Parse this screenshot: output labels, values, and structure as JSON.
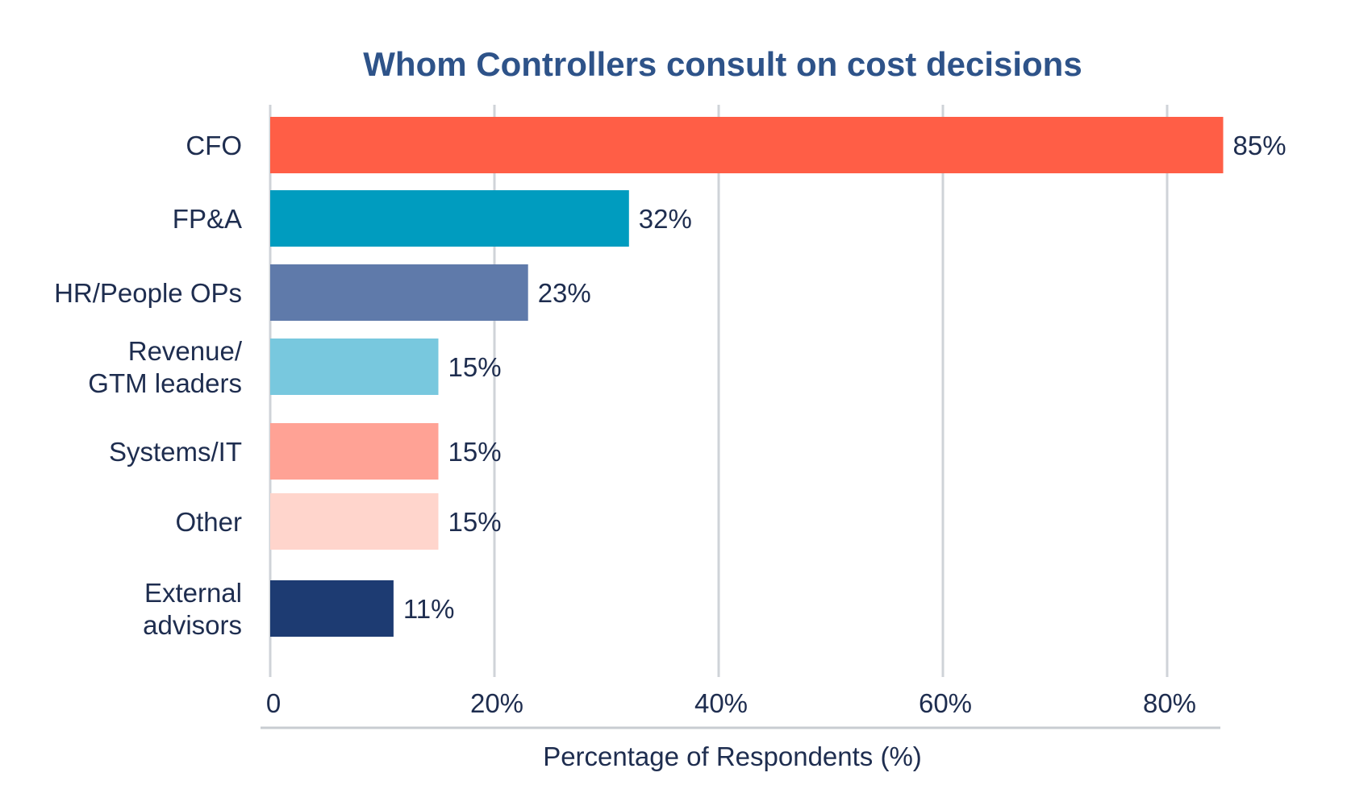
{
  "chart_data": {
    "type": "bar",
    "orientation": "horizontal",
    "title": "Whom Controllers consult on cost decisions",
    "xlabel": "Percentage of Respondents (%)",
    "ylabel": "",
    "xlim": [
      0,
      85
    ],
    "ticks": [
      {
        "value": 0,
        "label": "0"
      },
      {
        "value": 20,
        "label": "20%"
      },
      {
        "value": 40,
        "label": "40%"
      },
      {
        "value": 60,
        "label": "60%"
      },
      {
        "value": 80,
        "label": "80%"
      }
    ],
    "grid": true,
    "bars": [
      {
        "category": [
          "CFO"
        ],
        "value": 85,
        "label": "85%",
        "color": "#ff5e46"
      },
      {
        "category": [
          "FP&A"
        ],
        "value": 32,
        "label": "32%",
        "color": "#009cbf"
      },
      {
        "category": [
          "HR/People OPs"
        ],
        "value": 23,
        "label": "23%",
        "color": "#5f7aaa"
      },
      {
        "category": [
          "Revenue/",
          "GTM leaders"
        ],
        "value": 15,
        "label": "15%",
        "color": "#78c8de"
      },
      {
        "category": [
          "Systems/IT"
        ],
        "value": 15,
        "label": "15%",
        "color": "#ffa295"
      },
      {
        "category": [
          "Other"
        ],
        "value": 15,
        "label": "15%",
        "color": "#ffd5cc"
      },
      {
        "category": [
          "External",
          "advisors"
        ],
        "value": 11,
        "label": "11%",
        "color": "#1d3b72"
      }
    ]
  }
}
